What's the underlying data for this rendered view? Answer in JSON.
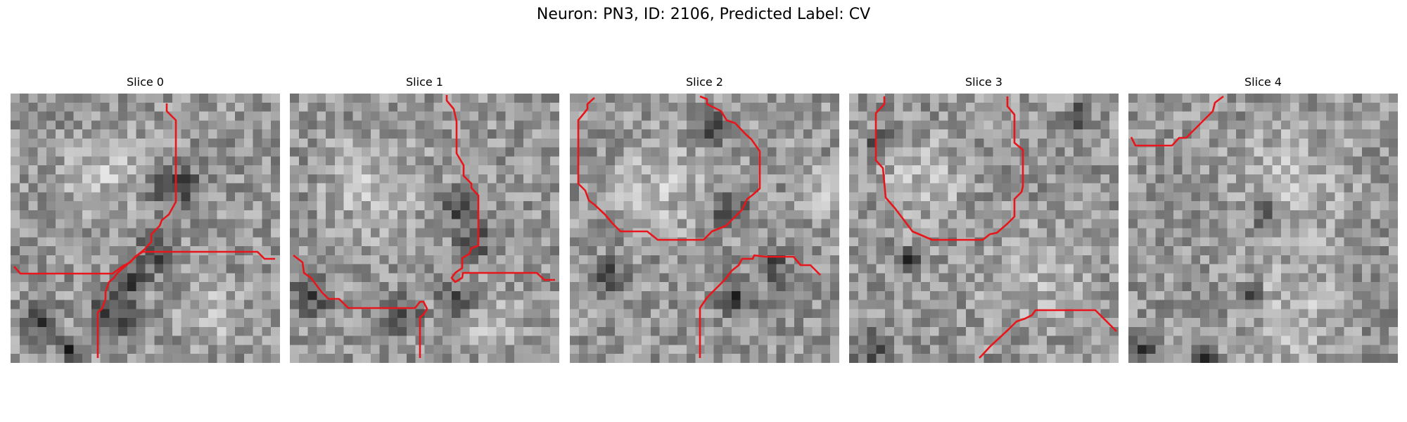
{
  "figure": {
    "suptitle": "Neuron: PN3, ID: 2106, Predicted Label: CV"
  },
  "slices": [
    {
      "title": "Slice 0"
    },
    {
      "title": "Slice 1"
    },
    {
      "title": "Slice 2"
    },
    {
      "title": "Slice 3"
    },
    {
      "title": "Slice 4"
    }
  ],
  "colors": {
    "contour": "#e8161b",
    "colormap": "gray"
  }
}
